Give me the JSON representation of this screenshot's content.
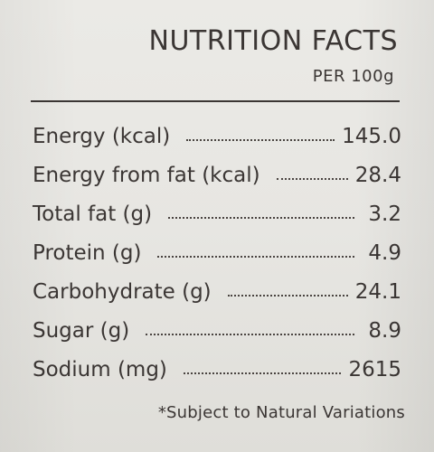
{
  "panel": {
    "title": "NUTRITION FACTS",
    "subtitle": "PER 100g"
  },
  "nutrients": [
    {
      "name": "Energy (kcal)",
      "value": "145.0"
    },
    {
      "name": "Energy from fat (kcal)",
      "value": "28.4"
    },
    {
      "name": "Total fat (g)",
      "value": "3.2"
    },
    {
      "name": "Protein (g)",
      "value": "4.9"
    },
    {
      "name": "Carbohydrate (g)",
      "value": "24.1"
    },
    {
      "name": "Sugar (g)",
      "value": "8.9"
    },
    {
      "name": "Sodium (mg)",
      "value": "2615"
    }
  ],
  "footnote": "*Subject to Natural Variations",
  "colors": {
    "label_background": "#e7e6e2",
    "text": "#3b3634"
  }
}
